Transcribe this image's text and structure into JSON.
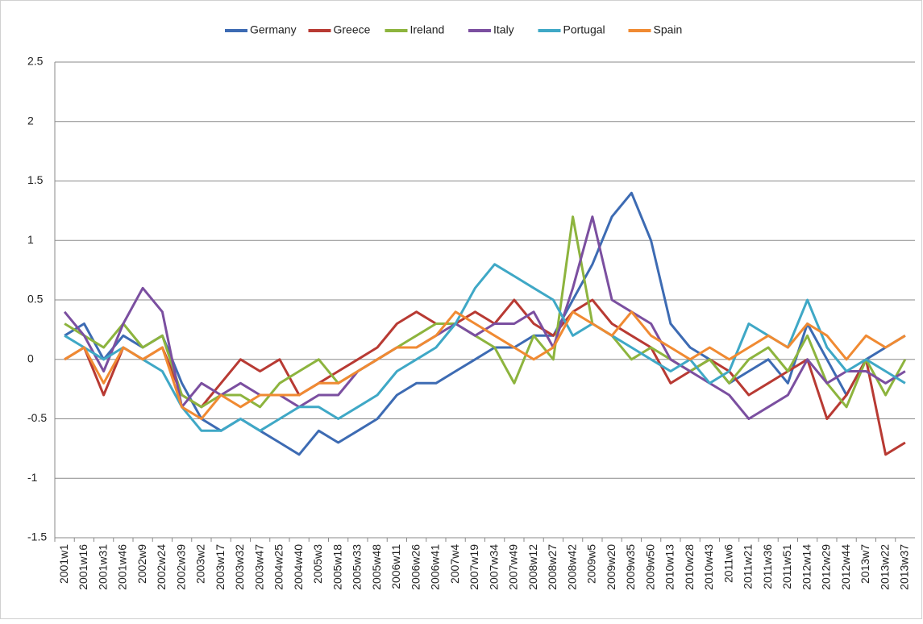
{
  "chart_data": {
    "type": "line",
    "categories": [
      "2001w1",
      "2001w16",
      "2001w31",
      "2001w46",
      "2002w9",
      "2002w24",
      "2002w39",
      "2003w2",
      "2003w17",
      "2003w32",
      "2003w47",
      "2004w25",
      "2004w40",
      "2005w3",
      "2005w18",
      "2005w33",
      "2005w48",
      "2006w11",
      "2006w26",
      "2006w41",
      "2007w4",
      "2007w19",
      "2007w34",
      "2007w49",
      "2008w12",
      "2008w27",
      "2008w42",
      "2009w5",
      "2009w20",
      "2009w35",
      "2009w50",
      "2010w13",
      "2010w28",
      "2010w43",
      "2011w6",
      "2011w21",
      "2011w36",
      "2011w51",
      "2012w14",
      "2012w29",
      "2012w44",
      "2013w7",
      "2013w22",
      "2013w37"
    ],
    "series": [
      {
        "name": "Germany",
        "color": "#3d6bb3",
        "values": [
          0.2,
          0.3,
          0.0,
          0.2,
          0.1,
          0.2,
          -0.2,
          -0.5,
          -0.6,
          -0.5,
          -0.6,
          -0.7,
          -0.8,
          -0.6,
          -0.7,
          -0.6,
          -0.5,
          -0.3,
          -0.2,
          -0.2,
          -0.1,
          0.0,
          0.1,
          0.1,
          0.2,
          0.2,
          0.5,
          0.8,
          1.2,
          1.4,
          1.0,
          0.3,
          0.1,
          0.0,
          -0.2,
          -0.1,
          0.0,
          -0.2,
          0.3,
          0.0,
          -0.3,
          0.0,
          0.1,
          0.2
        ]
      },
      {
        "name": "Greece",
        "color": "#b83a33",
        "values": [
          0.0,
          0.1,
          -0.3,
          0.1,
          0.0,
          0.1,
          -0.3,
          -0.4,
          -0.2,
          0.0,
          -0.1,
          0.0,
          -0.3,
          -0.2,
          -0.1,
          0.0,
          0.1,
          0.3,
          0.4,
          0.3,
          0.3,
          0.4,
          0.3,
          0.5,
          0.3,
          0.2,
          0.4,
          0.5,
          0.3,
          0.2,
          0.1,
          -0.2,
          -0.1,
          0.0,
          -0.1,
          -0.3,
          -0.2,
          -0.1,
          0.0,
          -0.5,
          -0.3,
          0.0,
          -0.8,
          -0.7
        ]
      },
      {
        "name": "Ireland",
        "color": "#8db43e",
        "values": [
          0.3,
          0.2,
          0.1,
          0.3,
          0.1,
          0.2,
          -0.3,
          -0.4,
          -0.3,
          -0.3,
          -0.4,
          -0.2,
          -0.1,
          0.0,
          -0.2,
          -0.1,
          0.0,
          0.1,
          0.2,
          0.3,
          0.3,
          0.2,
          0.1,
          -0.2,
          0.2,
          0.0,
          1.2,
          0.3,
          0.2,
          0.0,
          0.1,
          0.0,
          -0.1,
          0.0,
          -0.2,
          0.0,
          0.1,
          -0.1,
          0.2,
          -0.2,
          -0.4,
          0.0,
          -0.3,
          0.0
        ]
      },
      {
        "name": "Italy",
        "color": "#7b4fa0",
        "values": [
          0.4,
          0.2,
          -0.1,
          0.3,
          0.6,
          0.4,
          -0.4,
          -0.2,
          -0.3,
          -0.2,
          -0.3,
          -0.3,
          -0.4,
          -0.3,
          -0.3,
          -0.1,
          0.0,
          0.1,
          0.1,
          0.2,
          0.3,
          0.2,
          0.3,
          0.3,
          0.4,
          0.1,
          0.6,
          1.2,
          0.5,
          0.4,
          0.3,
          0.0,
          -0.1,
          -0.2,
          -0.3,
          -0.5,
          -0.4,
          -0.3,
          0.0,
          -0.2,
          -0.1,
          -0.1,
          -0.2,
          -0.1
        ]
      },
      {
        "name": "Portugal",
        "color": "#3fa8c6",
        "values": [
          0.2,
          0.1,
          0.0,
          0.1,
          0.0,
          -0.1,
          -0.4,
          -0.6,
          -0.6,
          -0.5,
          -0.6,
          -0.5,
          -0.4,
          -0.4,
          -0.5,
          -0.4,
          -0.3,
          -0.1,
          0.0,
          0.1,
          0.3,
          0.6,
          0.8,
          0.7,
          0.6,
          0.5,
          0.2,
          0.3,
          0.2,
          0.1,
          0.0,
          -0.1,
          0.0,
          -0.2,
          -0.1,
          0.3,
          0.2,
          0.1,
          0.5,
          0.1,
          -0.1,
          0.0,
          -0.1,
          -0.2
        ]
      },
      {
        "name": "Spain",
        "color": "#f08a32",
        "values": [
          0.0,
          0.1,
          -0.2,
          0.1,
          0.0,
          0.1,
          -0.4,
          -0.5,
          -0.3,
          -0.4,
          -0.3,
          -0.3,
          -0.3,
          -0.2,
          -0.2,
          -0.1,
          0.0,
          0.1,
          0.1,
          0.2,
          0.4,
          0.3,
          0.2,
          0.1,
          0.0,
          0.1,
          0.4,
          0.3,
          0.2,
          0.4,
          0.2,
          0.1,
          0.0,
          0.1,
          0.0,
          0.1,
          0.2,
          0.1,
          0.3,
          0.2,
          0.0,
          0.2,
          0.1,
          0.2
        ]
      }
    ],
    "ylim": [
      -1.5,
      2.5
    ],
    "yticks": [
      -1.5,
      -1,
      -0.5,
      0,
      0.5,
      1,
      1.5,
      2,
      2.5
    ],
    "grid": true,
    "legend": "top"
  }
}
